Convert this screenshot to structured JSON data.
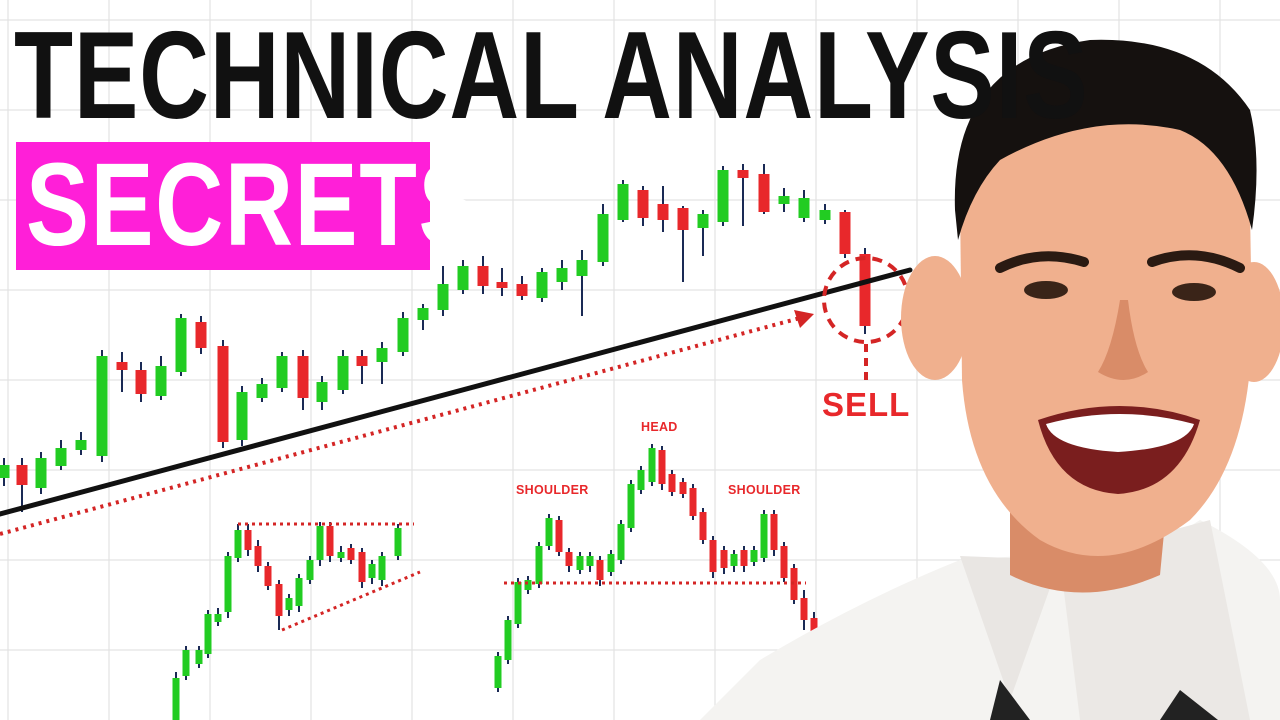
{
  "thumbnail": {
    "title_line1": "TECHNICAL ANALYSIS",
    "title_line2": "SECRETS",
    "badge_color": "#ff1fd8",
    "text_color": "#111111"
  },
  "annotations": {
    "sell_label": "SELL",
    "head_label": "HEAD",
    "left_shoulder_label": "SHOULDER",
    "right_shoulder_label": "SHOULDER"
  },
  "colors": {
    "bullish_candle": "#22cc22",
    "bearish_candle": "#e8282b",
    "trendline": "#111111",
    "dotted_line": "#d42525",
    "grid": "#e3e3e3"
  },
  "image": {
    "subject": "presenter-photo"
  }
}
